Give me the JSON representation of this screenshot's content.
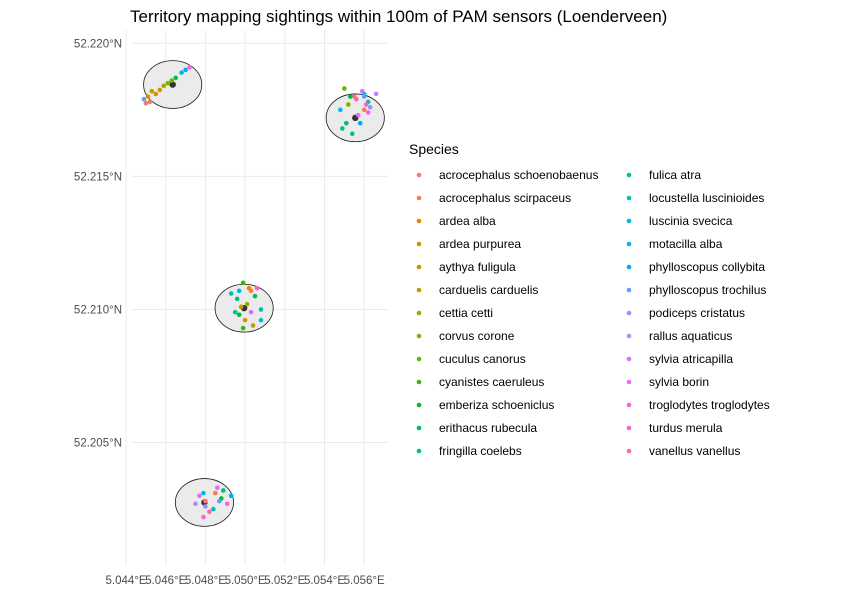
{
  "chart_data": {
    "type": "scatter",
    "title": "Territory mapping sightings within 100m of PAM sensors (Loenderveen)",
    "xlabel": "",
    "ylabel": "",
    "xlim": [
      5.0443,
      5.0572
    ],
    "ylim": [
      52.2004,
      52.2205
    ],
    "x_ticks": [
      "5.044°E",
      "5.046°E",
      "5.048°E",
      "5.050°E",
      "5.052°E",
      "5.054°E",
      "5.056°E"
    ],
    "x_tick_values": [
      5.044,
      5.046,
      5.048,
      5.05,
      5.052,
      5.054,
      5.056
    ],
    "y_ticks": [
      "52.205°N",
      "52.210°N",
      "52.215°N",
      "52.220°N"
    ],
    "y_tick_values": [
      52.205,
      52.21,
      52.215,
      52.22
    ],
    "grid": true,
    "legend_title": "Species",
    "legend_position": "right",
    "series": [
      {
        "name": "acrocephalus schoenobaenus",
        "color": "#F8766D",
        "points": [
          [
            5.045,
            52.21775
          ],
          [
            5.048,
            52.2028
          ],
          [
            5.0555,
            52.218
          ]
        ]
      },
      {
        "name": "acrocephalus scirpaceus",
        "color": "#F07F4D",
        "points": [
          [
            5.0452,
            52.2178
          ],
          [
            5.0503,
            52.2107
          ],
          [
            5.056,
            52.2175
          ],
          [
            5.0485,
            52.2031
          ]
        ]
      },
      {
        "name": "ardea alba",
        "color": "#E58700",
        "points": [
          [
            5.0455,
            52.2181
          ],
          [
            5.0502,
            52.2108
          ]
        ]
      },
      {
        "name": "ardea purpurea",
        "color": "#D89000",
        "points": [
          [
            5.0451,
            52.218
          ],
          [
            5.05,
            52.2096
          ]
        ]
      },
      {
        "name": "aythya fuligula",
        "color": "#C99800",
        "points": [
          [
            5.0457,
            52.21825
          ],
          [
            5.0498,
            52.2101
          ]
        ]
      },
      {
        "name": "carduelis carduelis",
        "color": "#B79F00",
        "points": [
          [
            5.0453,
            52.2182
          ],
          [
            5.0504,
            52.2094
          ]
        ]
      },
      {
        "name": "cettia cetti",
        "color": "#A3A500",
        "points": [
          [
            5.0459,
            52.2184
          ],
          [
            5.0501,
            52.2102
          ]
        ]
      },
      {
        "name": "corvus corone",
        "color": "#8BAB00",
        "points": [
          [
            5.0461,
            52.2185
          ],
          [
            5.0552,
            52.2177
          ]
        ]
      },
      {
        "name": "cuculus canorus",
        "color": "#6BB100",
        "points": [
          [
            5.0463,
            52.2186
          ],
          [
            5.055,
            52.2183
          ]
        ]
      },
      {
        "name": "cyanistes caeruleus",
        "color": "#39B600",
        "points": [
          [
            5.0499,
            52.211
          ],
          [
            5.0499,
            52.2093
          ]
        ]
      },
      {
        "name": "emberiza schoeniclus",
        "color": "#00BA38",
        "points": [
          [
            5.0553,
            52.218
          ],
          [
            5.0497,
            52.2098
          ],
          [
            5.0488,
            52.2029
          ]
        ]
      },
      {
        "name": "erithacus rubecula",
        "color": "#00BD5C",
        "points": [
          [
            5.0465,
            52.2187
          ],
          [
            5.0551,
            52.217
          ],
          [
            5.0505,
            52.2105
          ]
        ]
      },
      {
        "name": "fringilla coelebs",
        "color": "#00C07B",
        "points": [
          [
            5.0496,
            52.2104
          ],
          [
            5.0554,
            52.2166
          ],
          [
            5.0489,
            52.2032
          ]
        ]
      },
      {
        "name": "fulica atra",
        "color": "#00C19A",
        "points": [
          [
            5.0508,
            52.21
          ],
          [
            5.0495,
            52.2099
          ],
          [
            5.0549,
            52.2168
          ]
        ]
      },
      {
        "name": "locustella luscinioides",
        "color": "#00C0B8",
        "points": [
          [
            5.0493,
            52.2106
          ],
          [
            5.0562,
            52.2178
          ],
          [
            5.0484,
            52.2025
          ]
        ]
      },
      {
        "name": "luscinia svecica",
        "color": "#00BCD8",
        "points": [
          [
            5.0468,
            52.2189
          ],
          [
            5.056,
            52.2181
          ],
          [
            5.0508,
            52.2096
          ]
        ]
      },
      {
        "name": "motacilla alba",
        "color": "#00B6EB",
        "points": [
          [
            5.0548,
            52.2175
          ],
          [
            5.0497,
            52.2107
          ],
          [
            5.0479,
            52.2031
          ]
        ]
      },
      {
        "name": "phylloscopus collybita",
        "color": "#00A9FF",
        "points": [
          [
            5.047,
            52.219
          ],
          [
            5.0558,
            52.217
          ],
          [
            5.0493,
            52.203
          ]
        ]
      },
      {
        "name": "phylloscopus trochilus",
        "color": "#619CFF",
        "points": [
          [
            5.0449,
            52.2179
          ],
          [
            5.056,
            52.218
          ],
          [
            5.0487,
            52.2028
          ]
        ]
      },
      {
        "name": "podiceps cristatus",
        "color": "#9590FF",
        "points": [
          [
            5.0563,
            52.2176
          ],
          [
            5.048,
            52.2026
          ]
        ]
      },
      {
        "name": "rallus aquaticus",
        "color": "#BB83FF",
        "points": [
          [
            5.0566,
            52.2181
          ],
          [
            5.0475,
            52.2027
          ]
        ]
      },
      {
        "name": "sylvia atricapilla",
        "color": "#D575FE",
        "points": [
          [
            5.0559,
            52.2182
          ],
          [
            5.0477,
            52.203
          ]
        ]
      },
      {
        "name": "sylvia borin",
        "color": "#E76BF3",
        "points": [
          [
            5.0557,
            52.2173
          ],
          [
            5.0503,
            52.2099
          ],
          [
            5.0486,
            52.2033
          ]
        ]
      },
      {
        "name": "troglodytes troglodytes",
        "color": "#F564E3",
        "points": [
          [
            5.0472,
            52.2191
          ],
          [
            5.0562,
            52.2174
          ],
          [
            5.0491,
            52.2027
          ]
        ]
      },
      {
        "name": "turdus merula",
        "color": "#FD61D1",
        "points": [
          [
            5.0561,
            52.2177
          ],
          [
            5.0506,
            52.2108
          ],
          [
            5.0479,
            52.2022
          ]
        ]
      },
      {
        "name": "vanellus vanellus",
        "color": "#FF64B0",
        "points": [
          [
            5.0556,
            52.2179
          ],
          [
            5.0482,
            52.2024
          ]
        ]
      }
    ],
    "sensors": [
      {
        "x": 5.04635,
        "y": 52.21845,
        "radius_m": 100
      },
      {
        "x": 5.05555,
        "y": 52.2172,
        "radius_m": 100
      },
      {
        "x": 5.04995,
        "y": 52.21005,
        "radius_m": 100
      },
      {
        "x": 5.04795,
        "y": 52.20275,
        "radius_m": 100
      }
    ]
  }
}
